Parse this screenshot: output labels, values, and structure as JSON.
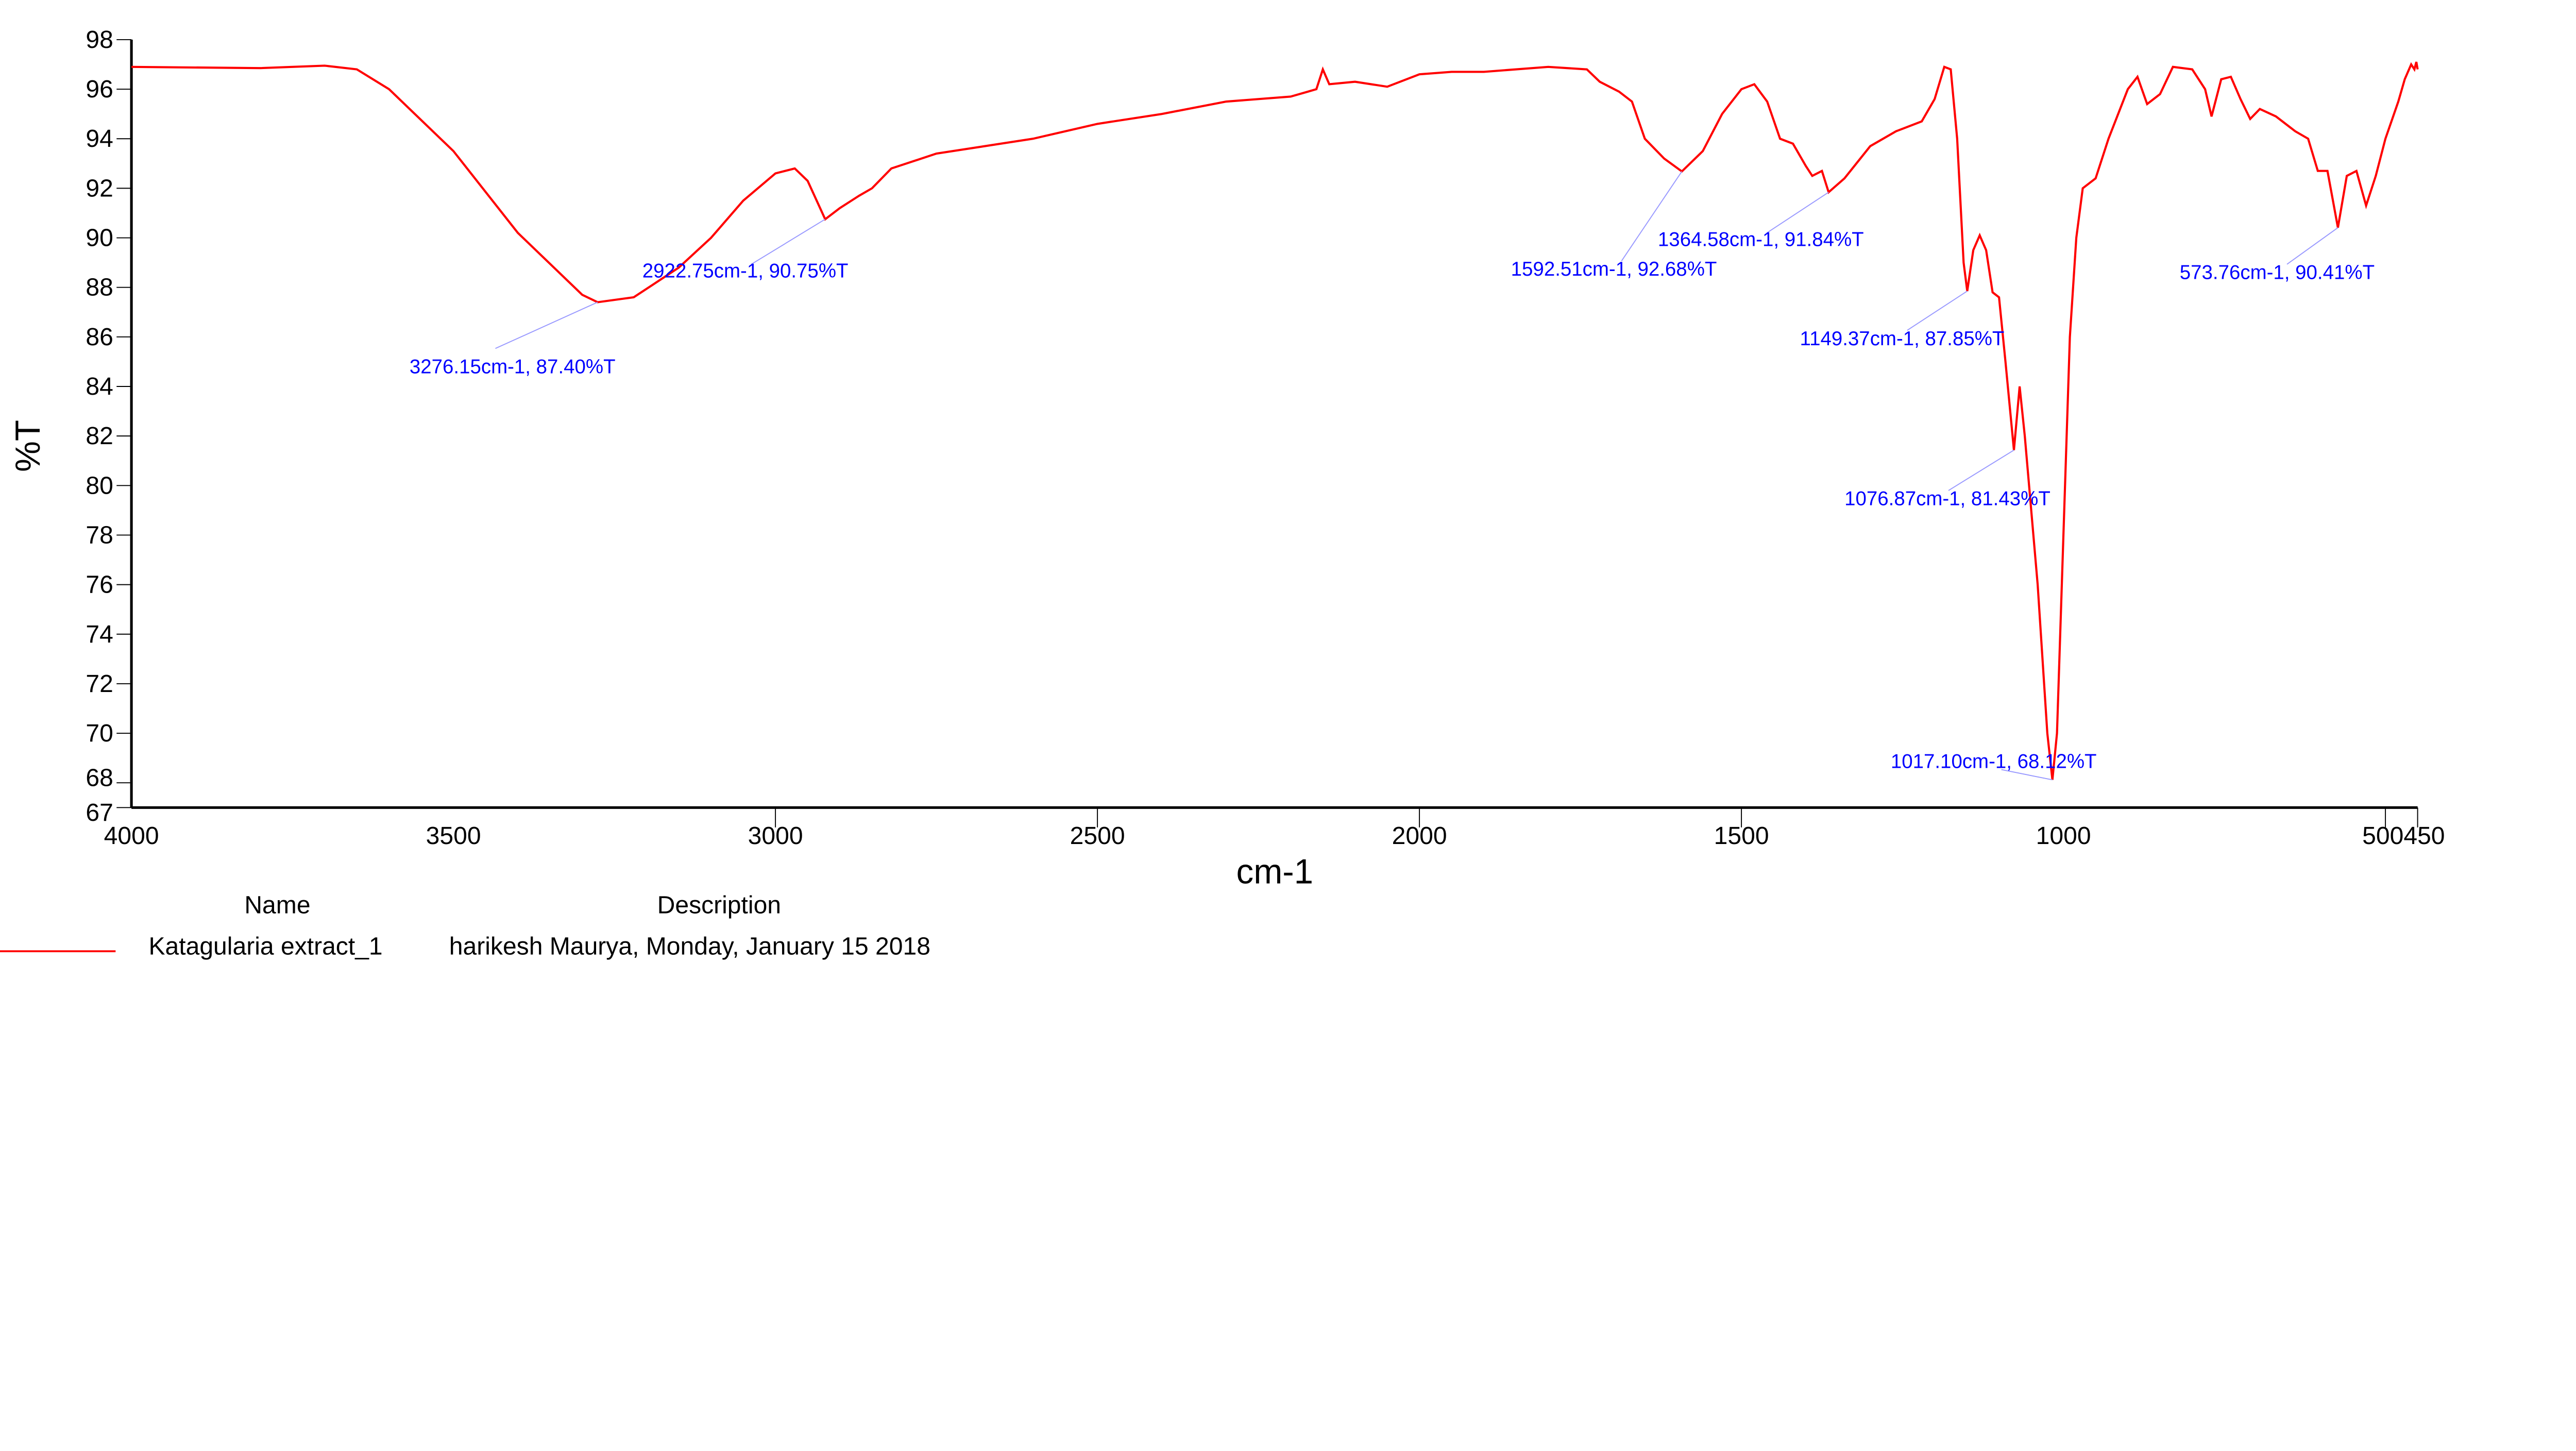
{
  "chart_data": {
    "type": "line",
    "xlabel": "cm-1",
    "ylabel": "%T",
    "xlim": [
      4000,
      450
    ],
    "ylim": [
      67,
      98
    ],
    "x_reversed": true,
    "grid": false,
    "x_ticks": [
      "4000",
      "3500",
      "3000",
      "2500",
      "2000",
      "1500",
      "1000",
      "500",
      "450"
    ],
    "x_tick_values": [
      4000,
      3500,
      3000,
      2500,
      2000,
      1500,
      1000,
      500,
      450
    ],
    "y_ticks": [
      "98",
      "96",
      "94",
      "92",
      "90",
      "88",
      "86",
      "84",
      "82",
      "80",
      "78",
      "76",
      "74",
      "72",
      "70",
      "68",
      "67"
    ],
    "y_tick_values": [
      98,
      96,
      94,
      92,
      90,
      88,
      86,
      84,
      82,
      80,
      78,
      76,
      74,
      72,
      70,
      68,
      67
    ],
    "series": [
      {
        "name": "Katagularia extract_1",
        "color": "#ff0000",
        "points": [
          [
            4000,
            96.9
          ],
          [
            3800,
            96.85
          ],
          [
            3700,
            96.95
          ],
          [
            3650,
            96.8
          ],
          [
            3600,
            96.0
          ],
          [
            3500,
            93.5
          ],
          [
            3400,
            90.2
          ],
          [
            3300,
            87.7
          ],
          [
            3276.15,
            87.4
          ],
          [
            3220,
            87.6
          ],
          [
            3150,
            88.8
          ],
          [
            3100,
            90.0
          ],
          [
            3050,
            91.5
          ],
          [
            3000,
            92.6
          ],
          [
            2970,
            92.8
          ],
          [
            2950,
            92.3
          ],
          [
            2922.75,
            90.75
          ],
          [
            2900,
            91.2
          ],
          [
            2870,
            91.7
          ],
          [
            2850,
            92.0
          ],
          [
            2820,
            92.8
          ],
          [
            2750,
            93.4
          ],
          [
            2650,
            93.8
          ],
          [
            2600,
            94.0
          ],
          [
            2500,
            94.6
          ],
          [
            2400,
            95.0
          ],
          [
            2300,
            95.5
          ],
          [
            2200,
            95.7
          ],
          [
            2160,
            96.0
          ],
          [
            2150,
            96.8
          ],
          [
            2140,
            96.2
          ],
          [
            2100,
            96.3
          ],
          [
            2050,
            96.1
          ],
          [
            2000,
            96.6
          ],
          [
            1950,
            96.7
          ],
          [
            1900,
            96.7
          ],
          [
            1800,
            96.9
          ],
          [
            1740,
            96.8
          ],
          [
            1720,
            96.3
          ],
          [
            1690,
            95.9
          ],
          [
            1670,
            95.5
          ],
          [
            1650,
            94.0
          ],
          [
            1620,
            93.2
          ],
          [
            1592.51,
            92.68
          ],
          [
            1560,
            93.5
          ],
          [
            1530,
            95.0
          ],
          [
            1500,
            96.0
          ],
          [
            1480,
            96.2
          ],
          [
            1460,
            95.5
          ],
          [
            1440,
            94.0
          ],
          [
            1420,
            93.8
          ],
          [
            1400,
            92.9
          ],
          [
            1390,
            92.5
          ],
          [
            1375,
            92.7
          ],
          [
            1364.58,
            91.84
          ],
          [
            1340,
            92.4
          ],
          [
            1300,
            93.7
          ],
          [
            1260,
            94.3
          ],
          [
            1220,
            94.7
          ],
          [
            1200,
            95.6
          ],
          [
            1185,
            96.9
          ],
          [
            1175,
            96.8
          ],
          [
            1165,
            94.0
          ],
          [
            1155,
            89.0
          ],
          [
            1149.37,
            87.85
          ],
          [
            1140,
            89.5
          ],
          [
            1130,
            90.1
          ],
          [
            1120,
            89.5
          ],
          [
            1110,
            87.8
          ],
          [
            1100,
            87.6
          ],
          [
            1090,
            85.0
          ],
          [
            1076.87,
            81.43
          ],
          [
            1068,
            84.0
          ],
          [
            1060,
            82.0
          ],
          [
            1040,
            76.0
          ],
          [
            1025,
            70.0
          ],
          [
            1017.1,
            68.12
          ],
          [
            1010,
            70.0
          ],
          [
            1000,
            78.0
          ],
          [
            990,
            86.0
          ],
          [
            980,
            90.0
          ],
          [
            970,
            92.0
          ],
          [
            960,
            92.2
          ],
          [
            950,
            92.4
          ],
          [
            930,
            94.0
          ],
          [
            900,
            96.0
          ],
          [
            885,
            96.5
          ],
          [
            870,
            95.4
          ],
          [
            850,
            95.8
          ],
          [
            830,
            96.9
          ],
          [
            800,
            96.8
          ],
          [
            780,
            96.0
          ],
          [
            770,
            94.9
          ],
          [
            755,
            96.4
          ],
          [
            740,
            96.5
          ],
          [
            725,
            95.6
          ],
          [
            710,
            94.8
          ],
          [
            695,
            95.2
          ],
          [
            670,
            94.9
          ],
          [
            640,
            94.3
          ],
          [
            620,
            94.0
          ],
          [
            605,
            92.7
          ],
          [
            590,
            92.7
          ],
          [
            573.76,
            90.41
          ],
          [
            560,
            92.5
          ],
          [
            545,
            92.7
          ],
          [
            530,
            91.3
          ],
          [
            515,
            92.5
          ],
          [
            500,
            94.0
          ],
          [
            480,
            95.5
          ],
          [
            470,
            96.4
          ],
          [
            460,
            97.0
          ],
          [
            455,
            96.8
          ],
          [
            452,
            97.1
          ],
          [
            450,
            96.8
          ]
        ]
      }
    ],
    "annotations": [
      {
        "x": 3276.15,
        "y": 87.4,
        "text": "3276.15cm-1, 87.40%T"
      },
      {
        "x": 2922.75,
        "y": 90.75,
        "text": "2922.75cm-1, 90.75%T"
      },
      {
        "x": 1592.51,
        "y": 92.68,
        "text": "1592.51cm-1, 92.68%T"
      },
      {
        "x": 1364.58,
        "y": 91.84,
        "text": "1364.58cm-1, 91.84%T"
      },
      {
        "x": 1149.37,
        "y": 87.85,
        "text": "1149.37cm-1, 87.85%T"
      },
      {
        "x": 1076.87,
        "y": 81.43,
        "text": "1076.87cm-1, 81.43%T"
      },
      {
        "x": 1017.1,
        "y": 68.12,
        "text": "1017.10cm-1, 68.12%T"
      },
      {
        "x": 573.76,
        "y": 90.41,
        "text": "573.76cm-1, 90.41%T"
      }
    ],
    "annotation_color": "#0000ff"
  },
  "legend": {
    "name_header": "Name",
    "description_header": "Description",
    "entries": [
      {
        "name": "Katagularia extract_1",
        "description": "harikesh Maurya, Monday, January 15 2018",
        "color": "#ff0000"
      }
    ]
  }
}
